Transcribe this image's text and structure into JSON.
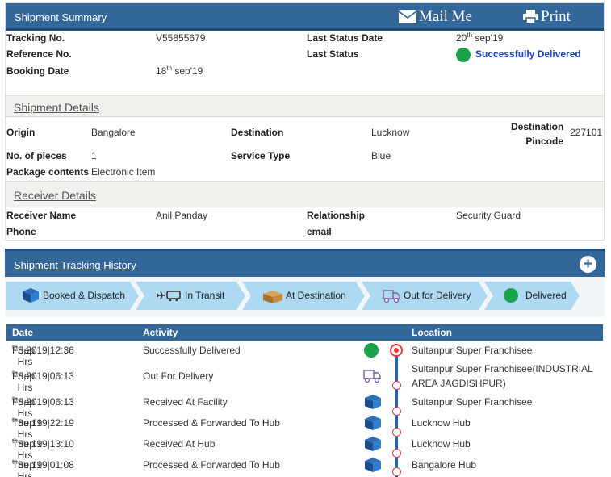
{
  "summary": {
    "title": "Shipment Summary",
    "mail_label": "Mail Me",
    "print_label": "Print",
    "tracking_label": "Tracking No.",
    "tracking_value": "V55855679",
    "reference_label": "Reference No.",
    "reference_value": "",
    "booking_label": "Booking Date",
    "booking_day": "18",
    "booking_suffix": "th",
    "booking_rest": " sep'19",
    "last_status_date_label": "Last Status Date",
    "last_status_day": "20",
    "last_status_suffix": "th",
    "last_status_rest": " sep'19",
    "last_status_label": "Last Status",
    "last_status_value": "Successfully Delivered",
    "status_color": "#1aa34a"
  },
  "shipment_details": {
    "title": "Shipment Details",
    "origin_label": "Origin",
    "origin_value": "Bangalore",
    "destination_label": "Destination",
    "destination_value": "Lucknow",
    "dest_pincode_label_1": "Destination",
    "dest_pincode_label_2": "Pincode",
    "dest_pincode_value": "227101",
    "pieces_label": "No. of pieces",
    "pieces_value": "1",
    "service_label": "Service Type",
    "service_value": "Blue",
    "contents_label": "Package contents",
    "contents_value": "Electronic Item"
  },
  "receiver_details": {
    "title": "Receiver Details",
    "name_label": "Receiver Name",
    "name_value": "Anil Panday",
    "relationship_label": "Relationship",
    "relationship_value": "Security Guard",
    "phone_label": "Phone",
    "email_label": "email"
  },
  "history": {
    "title": "Shipment Tracking History",
    "expand_icon": "plus-circle-icon",
    "steps": [
      {
        "label": "Booked & Dispatch",
        "icon": "package-icon"
      },
      {
        "label": "In Transit",
        "icon": "transit-icon"
      },
      {
        "label": "At Destination",
        "icon": "destination-icon"
      },
      {
        "label": "Out for Delivery",
        "icon": "delivery-icon"
      },
      {
        "label": "Delivered",
        "icon": "delivered-dot-icon"
      }
    ],
    "columns": {
      "date": "Date",
      "activity": "Activity",
      "location": "Location"
    },
    "rows": [
      {
        "day_prefix": "Fri,20",
        "suffix": "th",
        "rest": " Sep'19|12:36 Hrs",
        "activity": "Successfully Delivered",
        "location": "Sultanpur Super Franchisee",
        "location2": "",
        "icon": "delivered-dot-icon"
      },
      {
        "day_prefix": "Fri,20",
        "suffix": "th",
        "rest": " Sep'19|06:13 Hrs",
        "activity": "Out For Delivery",
        "location": "Sultanpur Super Franchisee(INDUSTRIAL",
        "location2": "AREA JAGDISHPUR)",
        "icon": "delivery-icon"
      },
      {
        "day_prefix": "Fri,20",
        "suffix": "th",
        "rest": " Sep'19|06:13 Hrs",
        "activity": "Received At Facility",
        "location": "Sultanpur Super Franchisee",
        "location2": "",
        "icon": "package-icon"
      },
      {
        "day_prefix": "Thu,19",
        "suffix": "th",
        "rest": " Sep'19|22:19 Hrs",
        "activity": "Processed & Forwarded To Hub",
        "location": "Lucknow Hub",
        "location2": "",
        "icon": "package-icon"
      },
      {
        "day_prefix": "Thu,19",
        "suffix": "th",
        "rest": " Sep'19|13:10 Hrs",
        "activity": "Received At Hub",
        "location": "Lucknow Hub",
        "location2": "",
        "icon": "package-icon"
      },
      {
        "day_prefix": "Thu,19",
        "suffix": "th",
        "rest": " Sep'19|01:08 Hrs",
        "activity": "Processed & Forwarded To Hub",
        "location": "Bangalore Hub",
        "location2": "",
        "icon": "package-icon"
      }
    ]
  }
}
